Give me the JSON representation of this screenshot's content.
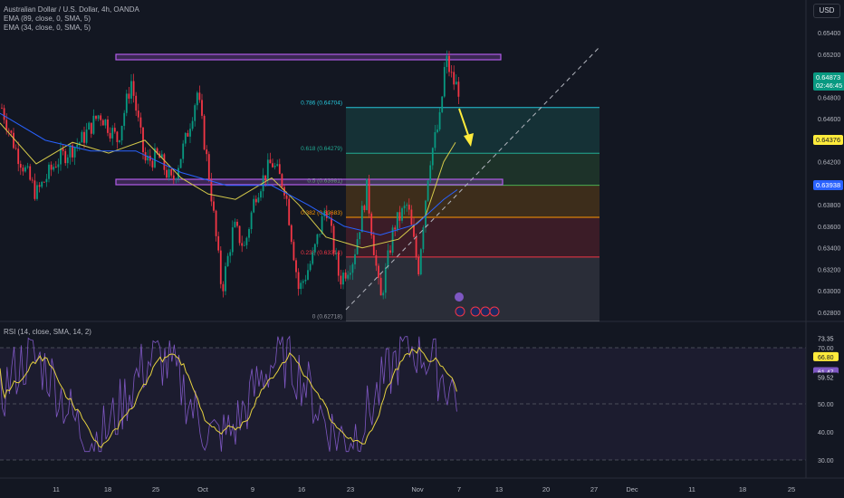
{
  "header": {
    "symbol_line": "Australian Dollar / U.S. Dollar, 4h, OANDA",
    "ema1": "EMA (89, close, 0, SMA, 5)",
    "ema2": "EMA (34, close, 0, SMA, 5)",
    "currency_button": "USD"
  },
  "rsi_legend": "RSI (14, close, SMA, 14, 2)",
  "price_axis": {
    "ticks": [
      "0.65400",
      "0.65200",
      "0.65000",
      "0.64800",
      "0.64600",
      "0.64400",
      "0.64200",
      "0.64000",
      "0.63800",
      "0.63600",
      "0.63400",
      "0.63200",
      "0.63000",
      "0.62800"
    ],
    "last_price": "0.64873",
    "countdown": "02:46:45",
    "ema34_value": "0.64376",
    "ema89_value": "0.63938"
  },
  "rsi_axis": {
    "ticks": [
      "70.00",
      "60.00",
      "50.00",
      "40.00",
      "30.00"
    ],
    "labels": [
      "73.35",
      "66.80",
      "61.47",
      "59.52"
    ]
  },
  "time_axis": [
    "11",
    "18",
    "25",
    "Oct",
    "9",
    "16",
    "23",
    "Nov",
    "7",
    "13",
    "20",
    "27",
    "Dec",
    "11",
    "18",
    "25"
  ],
  "fib_levels": [
    {
      "label": "0.786 (0.64704)",
      "value": 0.64704,
      "color": "#26c6da"
    },
    {
      "label": "0.618 (0.64279)",
      "value": 0.64279,
      "color": "#22ab94"
    },
    {
      "label": "0.5 (0.63981)",
      "value": 0.63981,
      "color": "#4caf50"
    },
    {
      "label": "0.382 (0.63683)",
      "value": 0.63683,
      "color": "#ff9800"
    },
    {
      "label": "0.236 (0.63314)",
      "value": 0.63314,
      "color": "#f23645"
    },
    {
      "label": "0 (0.62718)",
      "value": 0.62718,
      "color": "#9598a1"
    }
  ],
  "colors": {
    "up": "#089981",
    "down": "#f23645",
    "ema34": "#d4c94a",
    "ema89": "#2962ff",
    "rsi": "#7e57c2",
    "rsi_ma": "#e6d23f",
    "zone": "#b15be8",
    "arrow": "#ffeb3b"
  },
  "chart_data": {
    "type": "line",
    "title": "Australian Dollar / U.S. Dollar, 4h, OANDA",
    "x": [
      "11",
      "18",
      "25",
      "Oct",
      "9",
      "16",
      "23",
      "Nov",
      "7"
    ],
    "ylim": [
      0.6272,
      0.6548
    ],
    "series": [
      {
        "name": "EMA (34, close, 0, SMA, 5)",
        "values": [
          0.6456,
          0.6418,
          0.6428,
          0.64,
          0.6385,
          0.6395,
          0.634,
          0.6345,
          0.6438
        ]
      },
      {
        "name": "EMA (89, close, 0, SMA, 5)",
        "values": [
          0.6465,
          0.644,
          0.642,
          0.6402,
          0.6395,
          0.6388,
          0.6358,
          0.6352,
          0.6394
        ]
      }
    ],
    "close": [
      0.6462,
      0.6455,
      0.6435,
      0.6402,
      0.6392,
      0.6413,
      0.6312,
      0.6348,
      0.6487
    ],
    "rsi": {
      "name": "RSI (14, close, SMA, 14, 2)",
      "ylim": [
        28,
        76
      ],
      "values": [
        52,
        44,
        66,
        38,
        60,
        55,
        41,
        58,
        68
      ],
      "ma_values": [
        53,
        44,
        56,
        43,
        52,
        56,
        46,
        51,
        67
      ]
    },
    "fibonacci": {
      "levels": [
        0.786,
        0.618,
        0.5,
        0.382,
        0.236,
        0
      ],
      "prices": [
        0.64704,
        0.64279,
        0.63981,
        0.63683,
        0.63314,
        0.62718
      ]
    },
    "grid": false
  }
}
